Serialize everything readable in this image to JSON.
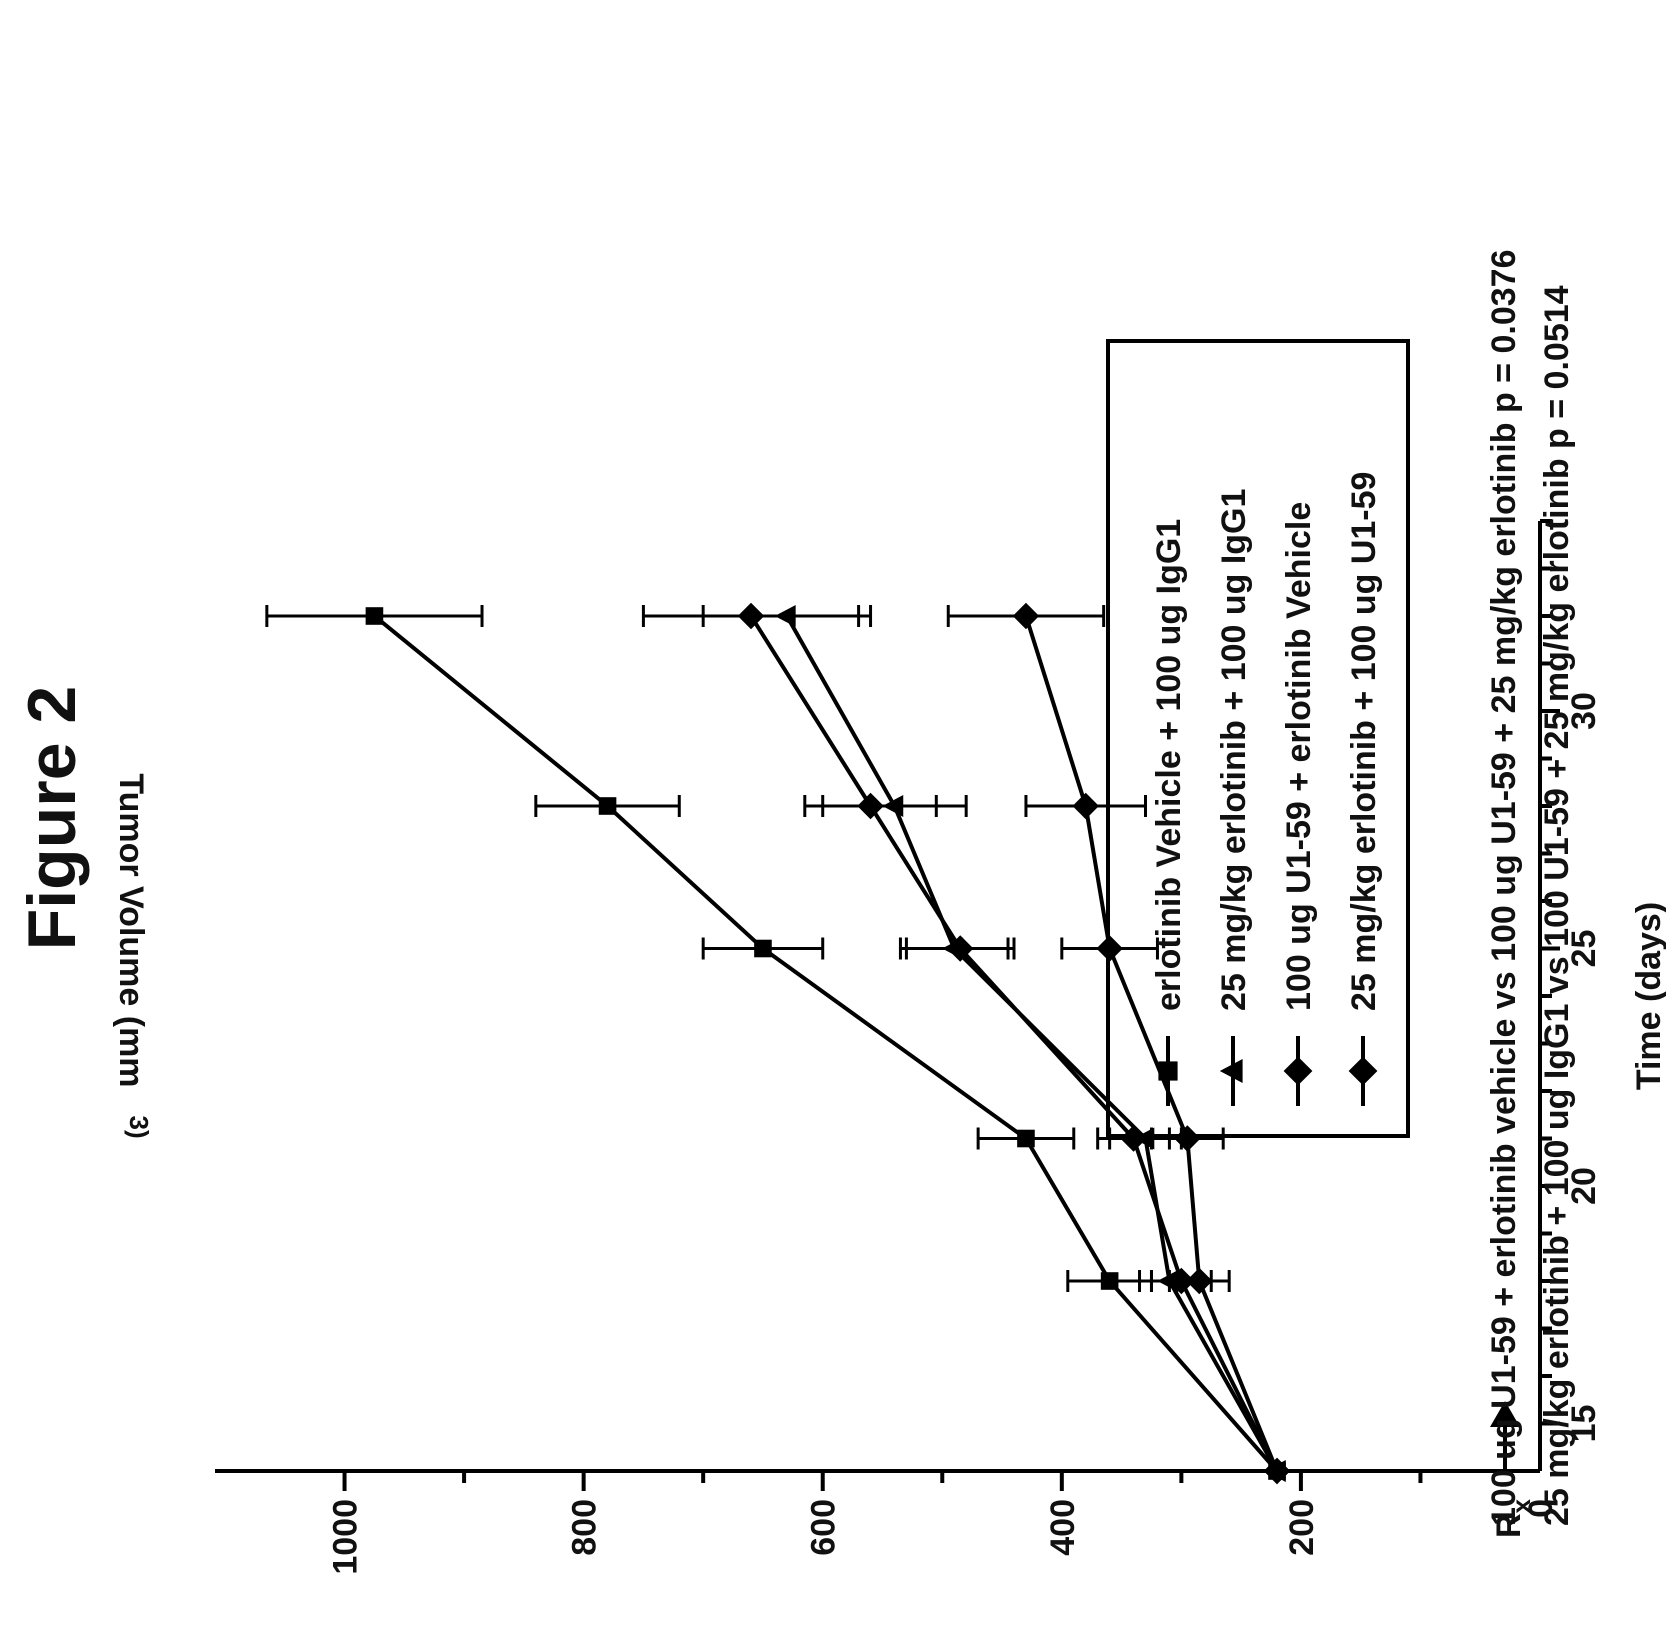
{
  "figure_label": "Figure 2",
  "chart_data": {
    "type": "line",
    "xlabel": "Time (days)",
    "ylabel": "Tumor Volume (mm",
    "ylabel_superscript": "3)",
    "xlim": [
      14,
      34
    ],
    "ylim": [
      0,
      1100
    ],
    "x_ticks": [
      "15",
      "20",
      "25",
      "30"
    ],
    "x_tick_values": [
      15,
      20,
      25,
      30
    ],
    "y_ticks": [
      "0",
      "200",
      "400",
      "600",
      "800",
      "1000"
    ],
    "y_tick_values": [
      0,
      200,
      400,
      600,
      800,
      1000
    ],
    "rx_label": "R",
    "rx_subscript": "x",
    "rx_day": 14,
    "x": [
      14,
      18,
      21,
      25,
      28,
      32
    ],
    "series": [
      {
        "name": "erlotinib Vehicle + 100 ug IgG1",
        "marker": "square",
        "values": [
          220,
          360,
          430,
          650,
          780,
          975
        ],
        "errors": [
          0,
          35,
          40,
          50,
          60,
          90
        ]
      },
      {
        "name": "25 mg/kg erlotinib + 100 ug IgG1",
        "marker": "triangle",
        "values": [
          220,
          310,
          330,
          490,
          540,
          630
        ],
        "errors": [
          0,
          25,
          30,
          45,
          60,
          70
        ]
      },
      {
        "name": "100 ug U1-59 + erlotinib Vehicle",
        "marker": "diamond",
        "values": [
          220,
          300,
          340,
          485,
          560,
          660
        ],
        "errors": [
          0,
          25,
          30,
          45,
          55,
          90
        ]
      },
      {
        "name": "25 mg/kg erlotinib + 100 ug U1-59",
        "marker": "diamond",
        "values": [
          220,
          285,
          295,
          360,
          380,
          430
        ],
        "errors": [
          0,
          25,
          30,
          40,
          50,
          65
        ]
      }
    ],
    "legend_position": "bottom",
    "grid": false,
    "annotations": [
      "100 ug U1-59 + erlotinib vehicle vs 100 ug U1-59 + 25 mg/kg erlotinib p = 0.0376",
      "25 mg/kg erlotinib + 100 ug IgG1 vs 100 U1-59 + 25 mg/kg erlotinib p = 0.0514"
    ]
  }
}
